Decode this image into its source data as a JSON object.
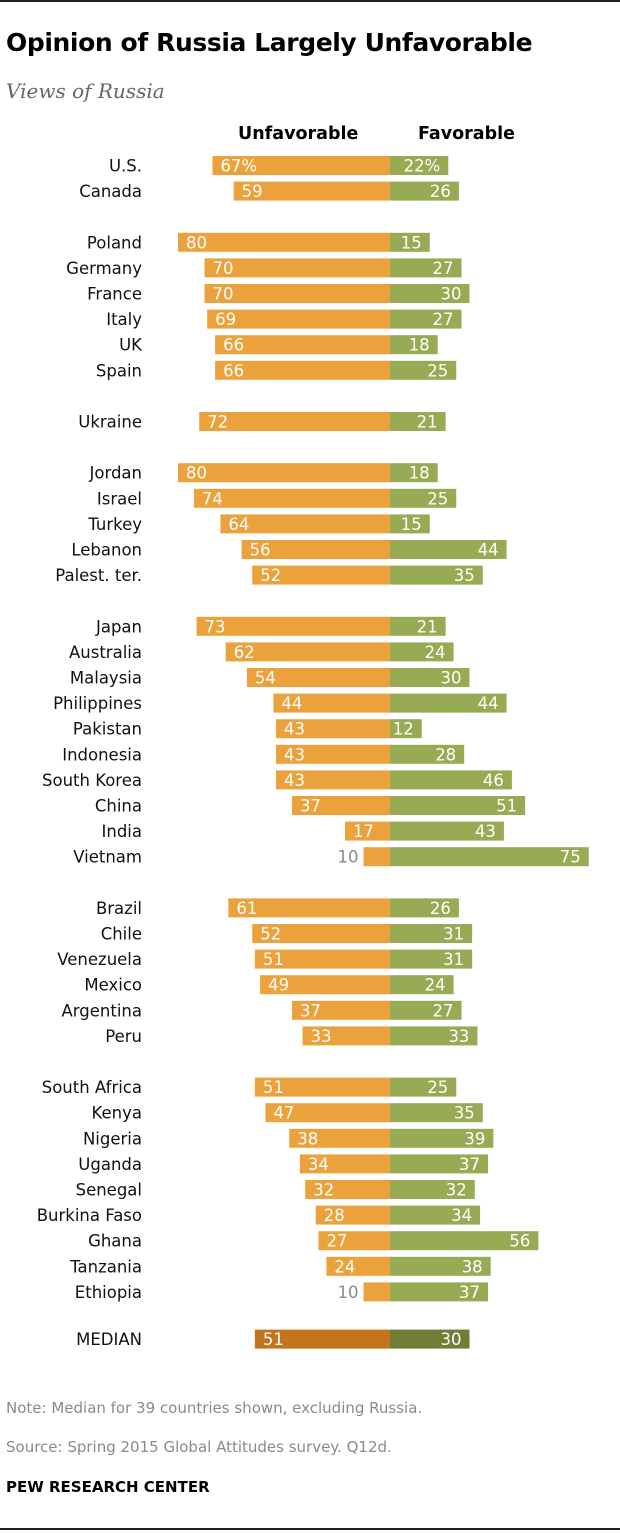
{
  "title": "Opinion of Russia Largely Unfavorable",
  "subtitle": "Views of Russia",
  "note": "Note: Median for 39 countries shown, excluding Russia.",
  "source": "Source: Spring 2015 Global Attitudes survey. Q12d.",
  "brand": "PEW RESEARCH CENTER",
  "colors": {
    "unfavorable": "#ECA23C",
    "favorable": "#97AB55",
    "unfavorable_median": "#C4741C",
    "favorable_median": "#717D35"
  },
  "chart_data": {
    "type": "bar",
    "orientation": "horizontal-diverging",
    "series": [
      {
        "name": "Unfavorable",
        "values": [
          67,
          59,
          80,
          70,
          70,
          69,
          66,
          66,
          72,
          80,
          74,
          64,
          56,
          52,
          73,
          62,
          54,
          44,
          43,
          43,
          43,
          37,
          17,
          10,
          61,
          52,
          51,
          49,
          37,
          33,
          51,
          47,
          38,
          34,
          32,
          28,
          27,
          24,
          10,
          51
        ],
        "labels": [
          "67%",
          "59",
          "80",
          "70",
          "70",
          "69",
          "66",
          "66",
          "72",
          "80",
          "74",
          "64",
          "56",
          "52",
          "73",
          "62",
          "54",
          "44",
          "43",
          "43",
          "43",
          "37",
          "17",
          "10",
          "61",
          "52",
          "51",
          "49",
          "37",
          "33",
          "51",
          "47",
          "38",
          "34",
          "32",
          "28",
          "27",
          "24",
          "10",
          "51"
        ]
      },
      {
        "name": "Favorable",
        "values": [
          22,
          26,
          15,
          27,
          30,
          27,
          18,
          25,
          21,
          18,
          25,
          15,
          44,
          35,
          21,
          24,
          30,
          44,
          12,
          28,
          46,
          51,
          43,
          75,
          26,
          31,
          31,
          24,
          27,
          33,
          25,
          35,
          39,
          37,
          32,
          34,
          56,
          38,
          37,
          30
        ],
        "labels": [
          "22%",
          "26",
          "15",
          "27",
          "30",
          "27",
          "18",
          "25",
          "21",
          "18",
          "25",
          "15",
          "44",
          "35",
          "21",
          "24",
          "30",
          "44",
          "12",
          "28",
          "46",
          "51",
          "43",
          "75",
          "26",
          "31",
          "31",
          "24",
          "27",
          "33",
          "25",
          "35",
          "39",
          "37",
          "32",
          "34",
          "56",
          "38",
          "37",
          "30"
        ]
      }
    ],
    "categories": [
      "U.S.",
      "Canada",
      "Poland",
      "Germany",
      "France",
      "Italy",
      "UK",
      "Spain",
      "Ukraine",
      "Jordan",
      "Israel",
      "Turkey",
      "Lebanon",
      "Palest. ter.",
      "Japan",
      "Australia",
      "Malaysia",
      "Philippines",
      "Pakistan",
      "Indonesia",
      "South Korea",
      "China",
      "India",
      "Vietnam",
      "Brazil",
      "Chile",
      "Venezuela",
      "Mexico",
      "Argentina",
      "Peru",
      "South Africa",
      "Kenya",
      "Nigeria",
      "Uganda",
      "Senegal",
      "Burkina Faso",
      "Ghana",
      "Tanzania",
      "Ethiopia",
      "MEDIAN"
    ],
    "groups": [
      2,
      6,
      1,
      5,
      10,
      6,
      9,
      1
    ],
    "highlight_last_row": true
  }
}
